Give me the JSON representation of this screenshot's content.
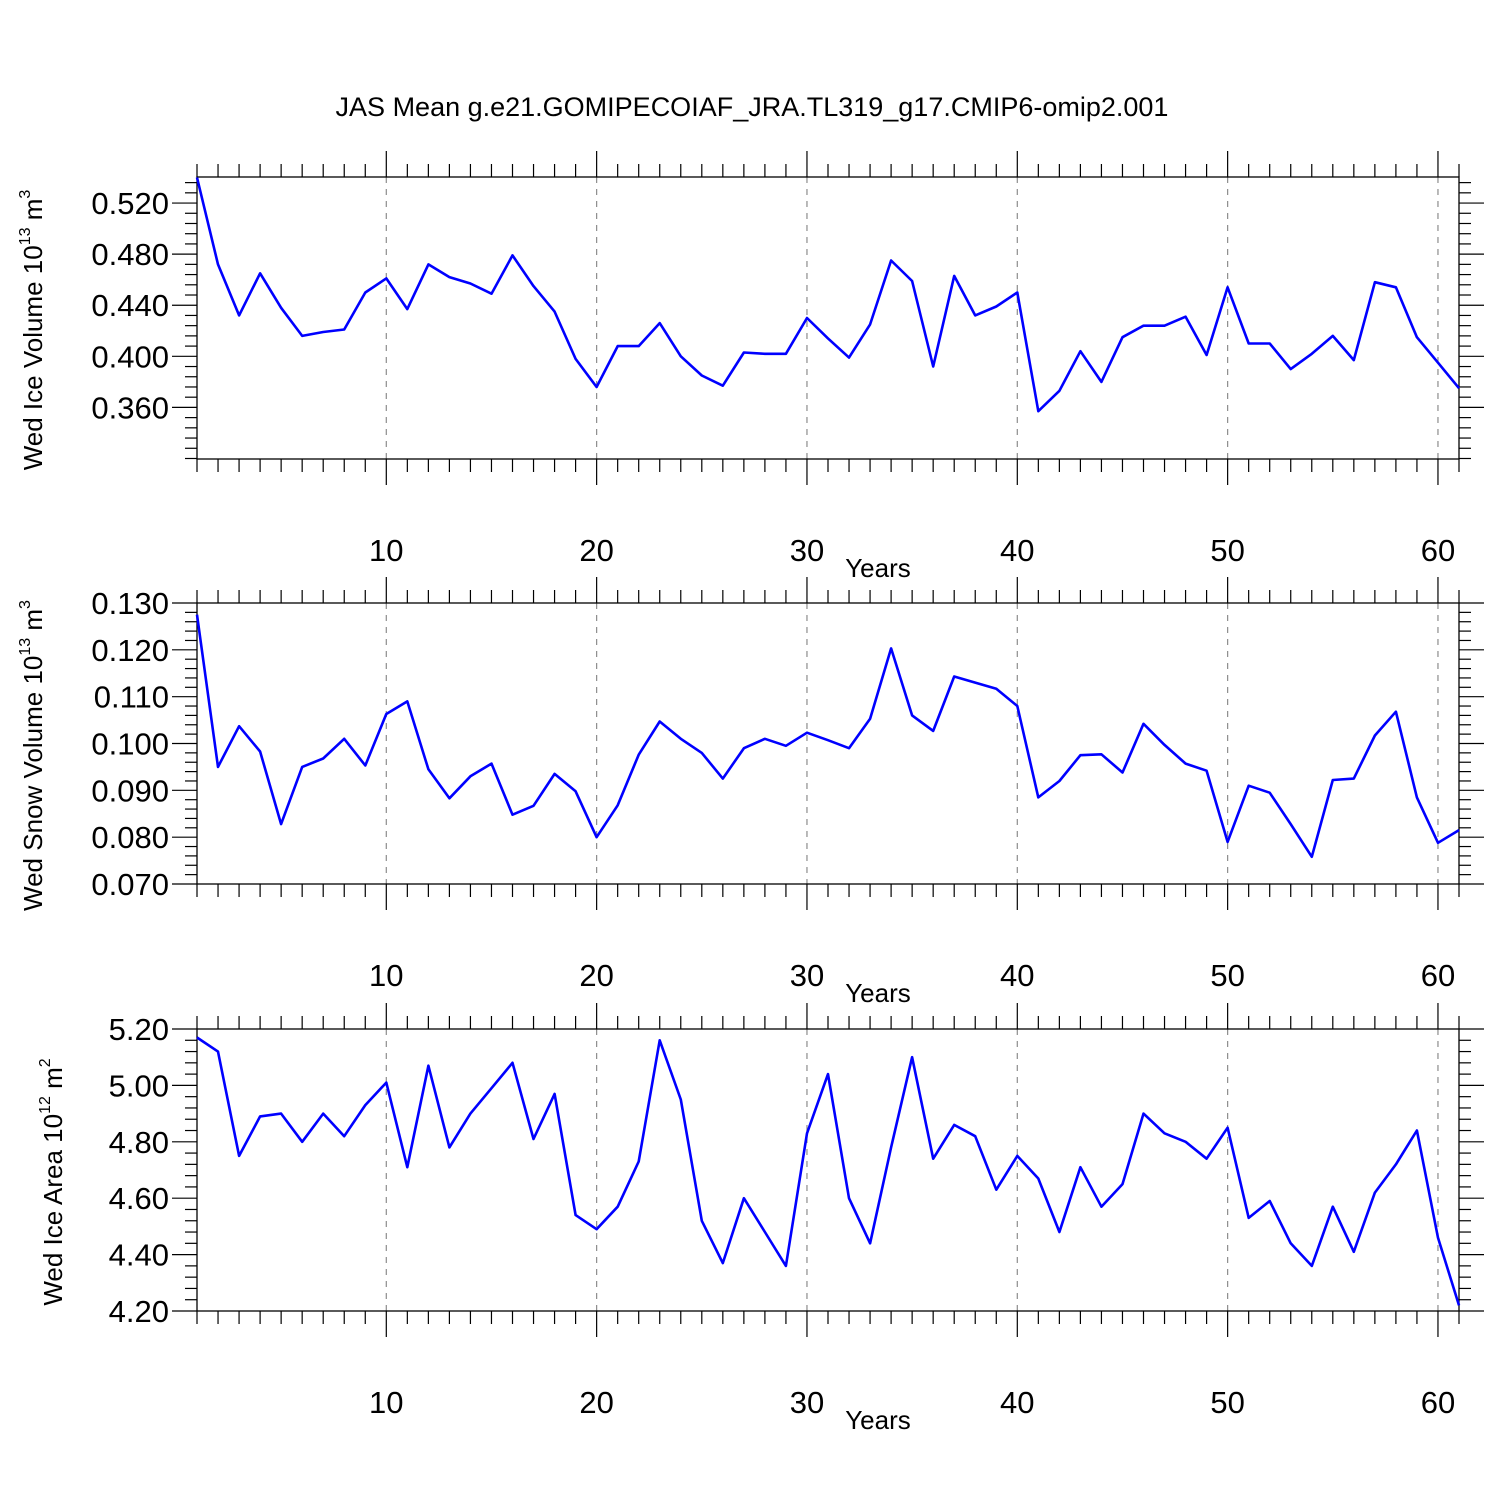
{
  "title": "JAS Mean g.e21.GOMIPECOIAF_JRA.TL319_g17.CMIP6-omip2.001",
  "colors": {
    "series": "#0000ff",
    "grid": "#8c8c8c"
  },
  "chart_data": [
    {
      "type": "line",
      "ylabel": {
        "text": "Wed Ice Volume 10",
        "sup": "13",
        "unit": " m",
        "unit_sup": "3"
      },
      "xlabel": "Years",
      "xlim": [
        1,
        61
      ],
      "ylim": [
        0.3196,
        0.5404
      ],
      "xticks": [
        10,
        20,
        30,
        40,
        50,
        60
      ],
      "xtick_labels": [
        "10",
        "20",
        "30",
        "40",
        "50",
        "60"
      ],
      "yticks": [
        0.36,
        0.4,
        0.44,
        0.48,
        0.52
      ],
      "ytick_labels": [
        "0.360",
        "0.400",
        "0.440",
        "0.480",
        "0.520"
      ],
      "y_minor_step": 0.008,
      "grid": "x-dashed",
      "x": [
        1,
        2,
        3,
        4,
        5,
        6,
        7,
        8,
        9,
        10,
        11,
        12,
        13,
        14,
        15,
        16,
        17,
        18,
        19,
        20,
        21,
        22,
        23,
        24,
        25,
        26,
        27,
        28,
        29,
        30,
        31,
        32,
        33,
        34,
        35,
        36,
        37,
        38,
        39,
        40,
        41,
        42,
        43,
        44,
        45,
        46,
        47,
        48,
        49,
        50,
        51,
        52,
        53,
        54,
        55,
        56,
        57,
        58,
        59,
        60,
        61
      ],
      "values": [
        0.54,
        0.472,
        0.432,
        0.465,
        0.438,
        0.416,
        0.419,
        0.421,
        0.45,
        0.461,
        0.437,
        0.472,
        0.462,
        0.457,
        0.449,
        0.479,
        0.455,
        0.435,
        0.398,
        0.376,
        0.408,
        0.408,
        0.426,
        0.4,
        0.385,
        0.377,
        0.403,
        0.402,
        0.402,
        0.43,
        0.414,
        0.399,
        0.425,
        0.475,
        0.459,
        0.392,
        0.463,
        0.432,
        0.439,
        0.45,
        0.357,
        0.373,
        0.404,
        0.38,
        0.415,
        0.424,
        0.424,
        0.431,
        0.401,
        0.454,
        0.41,
        0.41,
        0.39,
        0.402,
        0.416,
        0.397,
        0.458,
        0.454,
        0.415,
        0.395,
        0.375
      ]
    },
    {
      "type": "line",
      "ylabel": {
        "text": "Wed Snow Volume 10",
        "sup": "13",
        "unit": " m",
        "unit_sup": "3"
      },
      "xlabel": "Years",
      "xlim": [
        1,
        61
      ],
      "ylim": [
        0.07,
        0.13
      ],
      "xticks": [
        10,
        20,
        30,
        40,
        50,
        60
      ],
      "xtick_labels": [
        "10",
        "20",
        "30",
        "40",
        "50",
        "60"
      ],
      "yticks": [
        0.07,
        0.08,
        0.09,
        0.1,
        0.11,
        0.12,
        0.13
      ],
      "ytick_labels": [
        "0.070",
        "0.080",
        "0.090",
        "0.100",
        "0.110",
        "0.120",
        "0.130"
      ],
      "y_minor_step": 0.002,
      "grid": "x-dashed",
      "x": [
        1,
        2,
        3,
        4,
        5,
        6,
        7,
        8,
        9,
        10,
        11,
        12,
        13,
        14,
        15,
        16,
        17,
        18,
        19,
        20,
        21,
        22,
        23,
        24,
        25,
        26,
        27,
        28,
        29,
        30,
        31,
        32,
        33,
        34,
        35,
        36,
        37,
        38,
        39,
        40,
        41,
        42,
        43,
        44,
        45,
        46,
        47,
        48,
        49,
        50,
        51,
        52,
        53,
        54,
        55,
        56,
        57,
        58,
        59,
        60,
        61
      ],
      "values": [
        0.1275,
        0.095,
        0.1037,
        0.0983,
        0.0828,
        0.095,
        0.0968,
        0.101,
        0.0953,
        0.1063,
        0.109,
        0.0945,
        0.0883,
        0.093,
        0.0957,
        0.0848,
        0.0867,
        0.0935,
        0.0898,
        0.08,
        0.0868,
        0.0976,
        0.1047,
        0.101,
        0.098,
        0.0925,
        0.099,
        0.101,
        0.0995,
        0.1023,
        0.1007,
        0.099,
        0.1053,
        0.1203,
        0.106,
        0.1027,
        0.1143,
        0.113,
        0.1117,
        0.108,
        0.0885,
        0.092,
        0.0975,
        0.0977,
        0.0938,
        0.1042,
        0.0997,
        0.0957,
        0.0942,
        0.079,
        0.091,
        0.0895,
        0.0828,
        0.0758,
        0.0922,
        0.0925,
        0.1017,
        0.1068,
        0.0885,
        0.0788,
        0.0815
      ]
    },
    {
      "type": "line",
      "ylabel": {
        "text": "Wed Ice Area 10",
        "sup": "12",
        "unit": " m",
        "unit_sup": "2"
      },
      "xlabel": "Years",
      "xlim": [
        1,
        61
      ],
      "ylim": [
        4.2,
        5.2
      ],
      "xticks": [
        10,
        20,
        30,
        40,
        50,
        60
      ],
      "xtick_labels": [
        "10",
        "20",
        "30",
        "40",
        "50",
        "60"
      ],
      "yticks": [
        4.2,
        4.4,
        4.6,
        4.8,
        5.0,
        5.2
      ],
      "ytick_labels": [
        "4.20",
        "4.40",
        "4.60",
        "4.80",
        "5.00",
        "5.20"
      ],
      "y_minor_step": 0.04,
      "grid": "x-dashed",
      "x": [
        1,
        2,
        3,
        4,
        5,
        6,
        7,
        8,
        9,
        10,
        11,
        12,
        13,
        14,
        15,
        16,
        17,
        18,
        19,
        20,
        21,
        22,
        23,
        24,
        25,
        26,
        27,
        28,
        29,
        30,
        31,
        32,
        33,
        34,
        35,
        36,
        37,
        38,
        39,
        40,
        41,
        42,
        43,
        44,
        45,
        46,
        47,
        48,
        49,
        50,
        51,
        52,
        53,
        54,
        55,
        56,
        57,
        58,
        59,
        60,
        61
      ],
      "values": [
        5.17,
        5.12,
        4.75,
        4.89,
        4.9,
        4.8,
        4.9,
        4.82,
        4.93,
        5.01,
        4.71,
        5.07,
        4.78,
        4.9,
        4.99,
        5.08,
        4.81,
        4.97,
        4.54,
        4.49,
        4.57,
        4.73,
        5.16,
        4.95,
        4.52,
        4.37,
        4.6,
        4.48,
        4.36,
        4.83,
        5.04,
        4.6,
        4.44,
        4.78,
        5.1,
        4.74,
        4.86,
        4.82,
        4.63,
        4.75,
        4.67,
        4.48,
        4.71,
        4.57,
        4.65,
        4.9,
        4.83,
        4.8,
        4.74,
        4.85,
        4.53,
        4.59,
        4.44,
        4.36,
        4.57,
        4.41,
        4.62,
        4.72,
        4.84,
        4.46,
        4.22
      ]
    }
  ]
}
